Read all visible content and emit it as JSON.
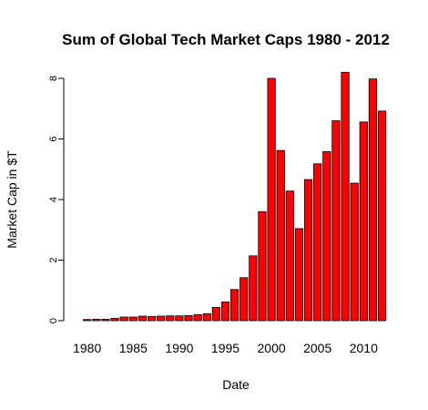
{
  "chart_data": {
    "type": "bar",
    "title": "Sum of Global Tech Market Caps 1980 - 2012",
    "xlabel": "Date",
    "ylabel": "Market Cap in $T",
    "categories": [
      1980,
      1981,
      1982,
      1983,
      1984,
      1985,
      1986,
      1987,
      1988,
      1989,
      1990,
      1991,
      1992,
      1993,
      1994,
      1995,
      1996,
      1997,
      1998,
      1999,
      2000,
      2001,
      2002,
      2003,
      2004,
      2005,
      2006,
      2007,
      2008,
      2009,
      2010,
      2011,
      2012
    ],
    "values": [
      0.04,
      0.05,
      0.05,
      0.08,
      0.12,
      0.12,
      0.15,
      0.14,
      0.15,
      0.16,
      0.16,
      0.17,
      0.2,
      0.23,
      0.44,
      0.62,
      1.03,
      1.42,
      2.14,
      3.6,
      8.0,
      5.62,
      4.28,
      3.04,
      4.66,
      5.18,
      5.58,
      6.6,
      8.2,
      4.54,
      6.56,
      7.98,
      6.92
    ],
    "xticks": [
      "1980",
      "1985",
      "1990",
      "1995",
      "2000",
      "2005",
      "2010"
    ],
    "yticks": [
      "0",
      "2",
      "4",
      "6",
      "8"
    ],
    "ylim": [
      0,
      8.2
    ],
    "grid": false,
    "bar_color": "#ff0000",
    "border_color": "#000000"
  }
}
